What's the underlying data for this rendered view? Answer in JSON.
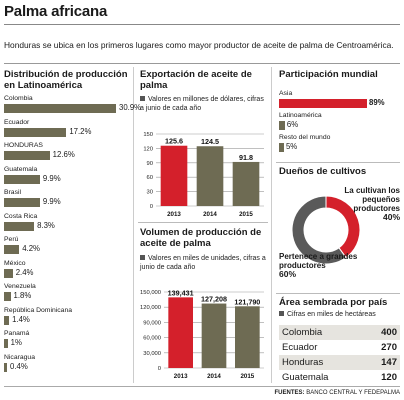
{
  "header": {
    "title": "Palma africana",
    "subtitle": "Honduras se ubica en los primeros lugares como mayor productor de aceite de palma de Centroamérica."
  },
  "distribucion": {
    "title": "Distribución de producción en Latinoamérica",
    "items": [
      {
        "label": "Colombia",
        "value": 30.9,
        "display": "30.9%"
      },
      {
        "label": "Ecuador",
        "value": 17.2,
        "display": "17.2%"
      },
      {
        "label": "HONDURAS",
        "value": 12.6,
        "display": "12.6%"
      },
      {
        "label": "Guatemala",
        "value": 9.9,
        "display": "9.9%"
      },
      {
        "label": "Brasil",
        "value": 9.9,
        "display": "9.9%"
      },
      {
        "label": "Costa Rica",
        "value": 8.3,
        "display": "8.3%"
      },
      {
        "label": "Perú",
        "value": 4.2,
        "display": "4.2%"
      },
      {
        "label": "México",
        "value": 2.4,
        "display": "2.4%"
      },
      {
        "label": "Venezuela",
        "value": 1.8,
        "display": "1.8%"
      },
      {
        "label": "República Dominicana",
        "value": 1.4,
        "display": "1.4%"
      },
      {
        "label": "Panamá",
        "value": 1,
        "display": "1%"
      },
      {
        "label": "Nicaragua",
        "value": 0.4,
        "display": "0.4%"
      }
    ]
  },
  "exportacion": {
    "title": "Exportación de aceite de palma",
    "note": "Valores en millones de dólares, cifras a junio de cada año",
    "yticks": [
      "150",
      "120",
      "90",
      "60",
      "30",
      "0"
    ]
  },
  "volumen": {
    "title": "Volumen de producción de aceite de palma",
    "note": "Valores en miles de unidades, cifras a junio de cada año",
    "yticks": [
      "150,000",
      "120,000",
      "90,000",
      "60,000",
      "30,000",
      "0"
    ]
  },
  "participacion": {
    "title": "Participación mundial",
    "items": [
      {
        "label": "Asia",
        "value": 89,
        "display": "89%"
      },
      {
        "label": "Latinoamérica",
        "value": 6,
        "display": "6%"
      },
      {
        "label": "Resto del mundo",
        "value": 5,
        "display": "5%"
      }
    ]
  },
  "duenos": {
    "title": "Dueños de cultivos",
    "small_label": "La cultivan los pequeños productores",
    "small_value": "40%",
    "large_label": "Pertenece a grandes productores",
    "large_value": "60%"
  },
  "area": {
    "title": "Área sembrada por país",
    "note": "Cifras en miles de hectáreas",
    "rows": [
      {
        "country": "Colombia",
        "value": "400"
      },
      {
        "country": "Ecuador",
        "value": "270"
      },
      {
        "country": "Honduras",
        "value": "147"
      },
      {
        "country": "Guatemala",
        "value": "120"
      }
    ]
  },
  "footer": {
    "label": "FUENTES:",
    "text": "BANCO CENTRAL Y FEDEPALMA"
  },
  "colors": {
    "olive": "#6e6b53",
    "red": "#d4202b",
    "gray": "#5a5a5a",
    "row_alt": "#e6e4df"
  },
  "chart_data": [
    {
      "type": "bar",
      "title": "Distribución de producción en Latinoamérica",
      "orientation": "horizontal",
      "categories": [
        "Colombia",
        "Ecuador",
        "HONDURAS",
        "Guatemala",
        "Brasil",
        "Costa Rica",
        "Perú",
        "México",
        "Venezuela",
        "República Dominicana",
        "Panamá",
        "Nicaragua"
      ],
      "values": [
        30.9,
        17.2,
        12.6,
        9.9,
        9.9,
        8.3,
        4.2,
        2.4,
        1.8,
        1.4,
        1,
        0.4
      ],
      "unit": "%"
    },
    {
      "type": "bar",
      "title": "Exportación de aceite de palma",
      "categories": [
        "2013",
        "2014",
        "2015"
      ],
      "values": [
        125.6,
        124.5,
        91.8
      ],
      "display": [
        "125.6",
        "124.5",
        "91.8"
      ],
      "ylim": [
        0,
        150
      ],
      "grid": true,
      "highlight": "2013"
    },
    {
      "type": "bar",
      "title": "Volumen de producción de aceite de palma",
      "categories": [
        "2013",
        "2014",
        "2015"
      ],
      "values": [
        139431,
        127208,
        121790
      ],
      "display": [
        "139,431",
        "127,208",
        "121,790"
      ],
      "ylim": [
        0,
        150000
      ],
      "grid": true,
      "highlight": "2013"
    },
    {
      "type": "pie",
      "title": "Dueños de cultivos",
      "style": "donut",
      "labels": [
        "La cultivan los pequeños productores",
        "Pertenece a grandes productores"
      ],
      "values": [
        40,
        60
      ]
    }
  ]
}
